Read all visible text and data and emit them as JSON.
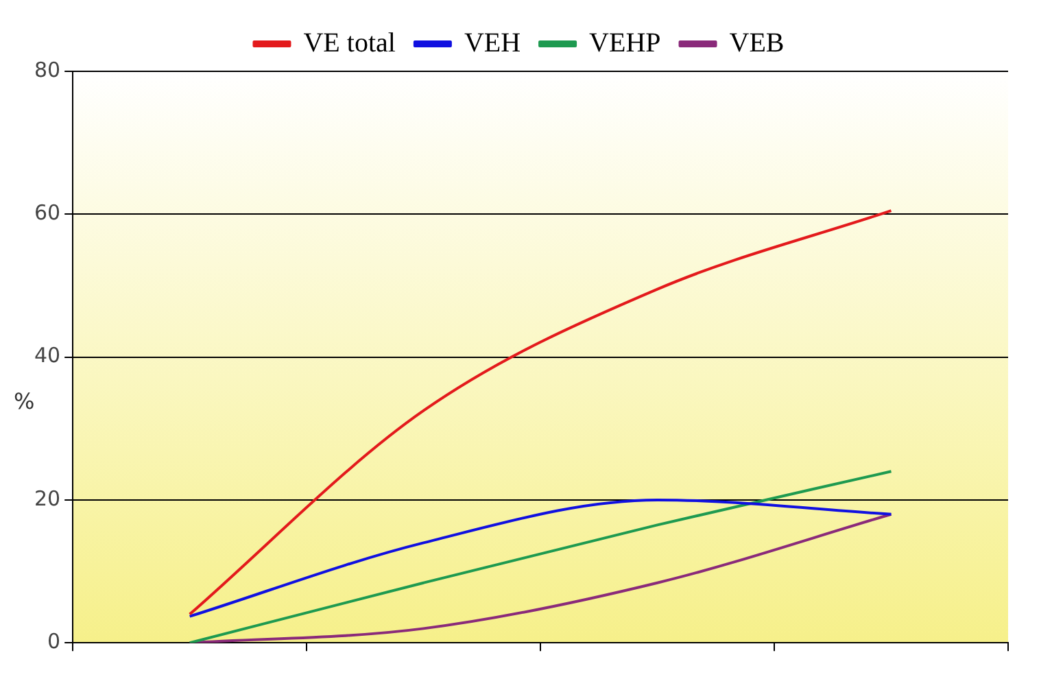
{
  "chart_data": {
    "type": "line",
    "ylabel": "%",
    "categories": [
      null,
      null,
      null,
      null
    ],
    "series": [
      {
        "name": "VE total",
        "color": "#e31a1c",
        "values": [
          4,
          32.5,
          49.5,
          60.5
        ]
      },
      {
        "name": "VEH",
        "color": "#1010e0",
        "values": [
          3.7,
          14,
          20,
          18
        ]
      },
      {
        "name": "VEHP",
        "color": "#1e9a50",
        "values": [
          0,
          8.4,
          16.5,
          24
        ]
      },
      {
        "name": "VEB",
        "color": "#8a2a7a",
        "values": [
          0,
          2,
          8.4,
          18
        ]
      }
    ],
    "ylim": [
      0,
      80
    ],
    "yticks": [
      0,
      20,
      40,
      60,
      80
    ],
    "grid": "y",
    "legend": "top",
    "marker": "none",
    "line_style": "solid"
  }
}
